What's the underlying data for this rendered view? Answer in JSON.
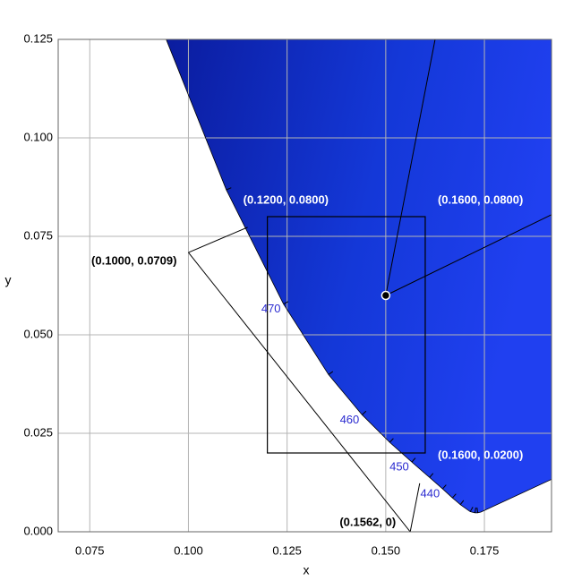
{
  "chart_data": {
    "type": "chromaticity",
    "xlabel": "x",
    "ylabel": "y",
    "xlim": [
      0.067,
      0.192
    ],
    "ylim": [
      0,
      0.125
    ],
    "xticks": [
      0.075,
      {
        "value": 0.1,
        "label": "0.100"
      },
      0.125,
      {
        "value": 0.15,
        "label": "0.150"
      },
      0.175
    ],
    "yticks": [
      {
        "value": 0,
        "label": "0.000"
      },
      0.025,
      {
        "value": 0.05,
        "label": "0.050"
      },
      0.075,
      {
        "value": 0.1,
        "label": "0.100"
      },
      0.125
    ],
    "grid": true,
    "color": "#1a3be0",
    "locus": {
      "x": [
        0.0913,
        0.1096,
        0.1241,
        0.1355,
        0.144,
        0.151,
        0.1566,
        0.1611,
        0.1644,
        0.1669,
        0.1689,
        0.1714,
        0.1726,
        0.1733,
        0.1741,
        0.192
      ],
      "y": [
        0.1327,
        0.0868,
        0.0578,
        0.0399,
        0.0297,
        0.0227,
        0.0177,
        0.0138,
        0.0109,
        0.0086,
        0.0069,
        0.0051,
        0.0048,
        0.0048,
        0.005,
        0.0133
      ]
    },
    "wavelength_labels": [
      {
        "label": 470,
        "x": 0.1241,
        "y": 0.0578
      },
      {
        "label": 460,
        "x": 0.144,
        "y": 0.0297
      },
      {
        "label": 450,
        "x": 0.1566,
        "y": 0.0177
      },
      {
        "label": 440,
        "x": 0.1644,
        "y": 0.0109
      }
    ],
    "rectangle": {
      "x": [
        0.12,
        0.16
      ],
      "y": [
        0.02,
        0.08
      ]
    },
    "lines": [
      {
        "x": [
          0.1,
          0.115
        ],
        "y": [
          0.0709,
          0.0773
        ]
      },
      {
        "x": [
          0.1,
          0.1562
        ],
        "y": [
          0.0709,
          0
        ]
      },
      {
        "x": [
          0.1562,
          0.1586
        ],
        "y": [
          0,
          0.0123
        ]
      },
      {
        "x": [
          0.15,
          0.1625
        ],
        "y": [
          0.06,
          0.125
        ]
      },
      {
        "x": [
          0.15,
          0.192
        ],
        "y": [
          0.06,
          0.0805
        ]
      }
    ],
    "point": {
      "x": 0.15,
      "y": 0.06
    },
    "annotations": [
      {
        "text": "(0.1200, 0.0800)",
        "x": 0.12,
        "y": 0.08,
        "color": "#ffffff"
      },
      {
        "text": "(0.1600, 0.0800)",
        "x": 0.16,
        "y": 0.08,
        "color": "#ffffff"
      },
      {
        "text": "(0.1000, 0.0709)",
        "x": 0.1,
        "y": 0.0709,
        "color": "#000000"
      },
      {
        "text": "(0.1600, 0.0200)",
        "x": 0.16,
        "y": 0.02,
        "color": "#ffffff"
      },
      {
        "text": "(0.1562, 0)",
        "x": 0.1562,
        "y": 0,
        "color": "#000000"
      }
    ]
  }
}
